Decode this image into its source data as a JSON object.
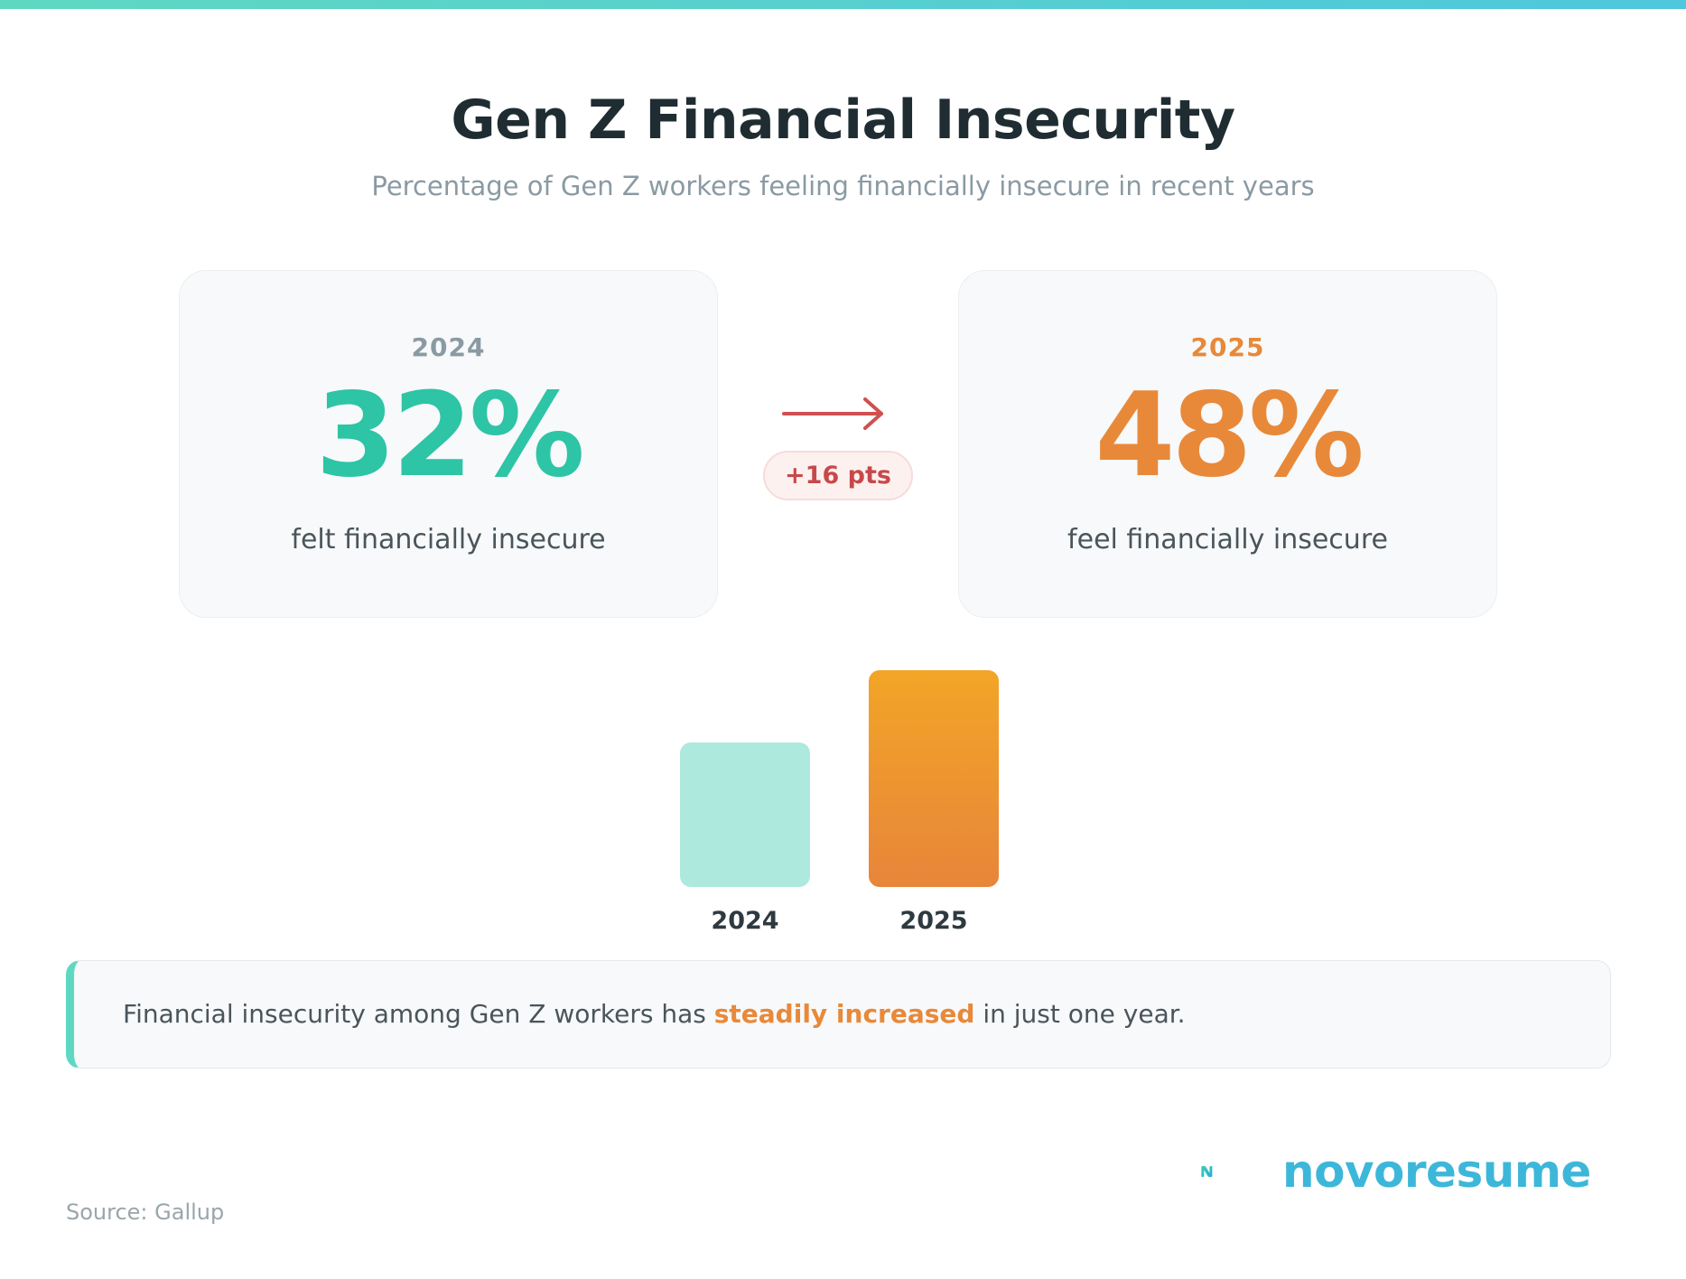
{
  "title": "Gen Z Financial Insecurity",
  "subtitle": "Percentage of Gen Z workers feeling financially insecure in recent years",
  "cards": [
    {
      "year": "2024",
      "value": "32%",
      "desc": "felt financially insecure",
      "color": "#2ec4a6"
    },
    {
      "year": "2025",
      "value": "48%",
      "desc": "feel financially insecure",
      "color": "#e8893a"
    }
  ],
  "change_label": "+16 pts",
  "chart_data": {
    "type": "bar",
    "categories": [
      "2024",
      "2025"
    ],
    "values": [
      32,
      48
    ],
    "ylim": [
      0,
      48
    ],
    "colors": [
      "#aee9de",
      "#f0a32a"
    ]
  },
  "callout": {
    "before": "Financial insecurity among Gen Z workers has ",
    "highlight": "steadily increased",
    "after": " in just one year."
  },
  "brand": "novoresume",
  "source": "Source: Gallup"
}
